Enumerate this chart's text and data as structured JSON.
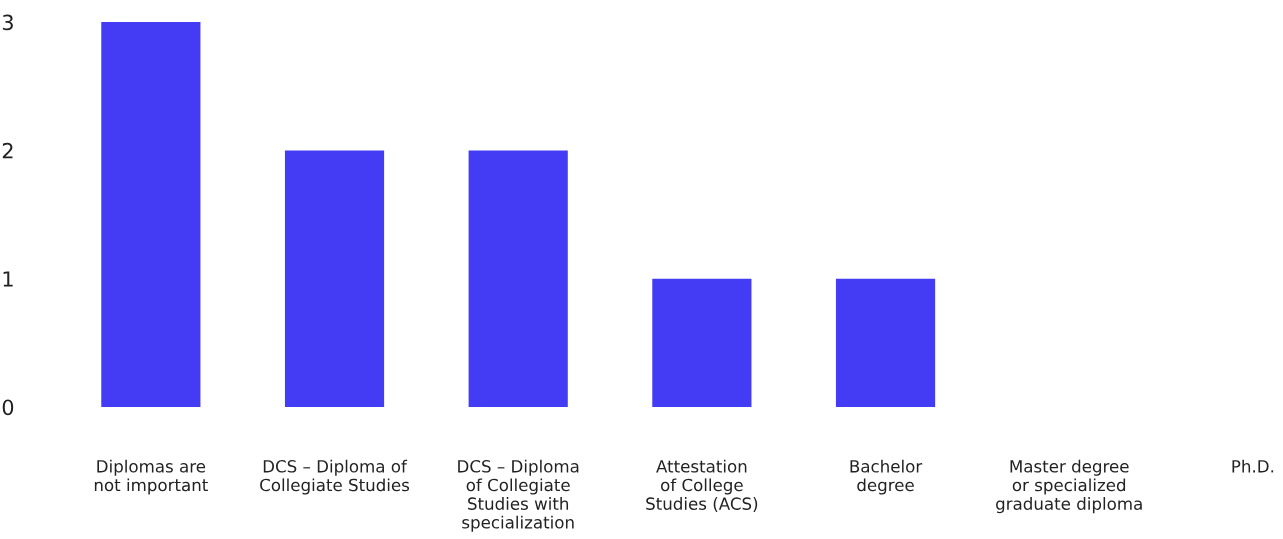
{
  "chart_data": {
    "type": "bar",
    "categories": [
      "Diplomas are\nnot important",
      "DCS – Diploma of\nCollegiate Studies",
      "DCS – Diploma\nof Collegiate\nStudies with\nspecialization",
      "Attestation\nof College\nStudies (ACS)",
      "Bachelor\ndegree",
      "Master degree\nor specialized\ngraduate diploma",
      "Ph.D."
    ],
    "values": [
      3,
      2,
      2,
      1,
      1,
      0,
      0
    ],
    "color": "#433cf4",
    "ylim": [
      0,
      3
    ],
    "yticks": [
      0,
      1,
      2,
      3
    ],
    "grid": false
  }
}
